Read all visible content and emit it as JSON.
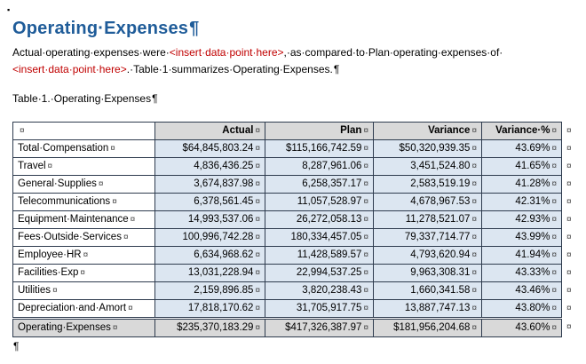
{
  "colors": {
    "heading_blue": "#1F5C99",
    "insert_red": "#C00000",
    "header_bg": "#D9D9D9",
    "cell_bg": "#DCE6F1",
    "total_bg": "#D9D9D9",
    "border_dark": "#2E3B4E",
    "mark_gray": "#3F3F3F"
  },
  "marks": {
    "pilcrow": "¶",
    "cell_end": "¤",
    "row_end": "¤",
    "top_square": "▪"
  },
  "heading": {
    "text": "Operating·Expenses"
  },
  "paragraph": {
    "seg1": "Actual·operating·expenses·were·",
    "seg2": "<insert·data·point·here>",
    "seg3": ",·as·compared·to·Plan·operating·expenses·of·",
    "seg4": "<insert·data·point·here>",
    "seg5": ".·Table·1·summarizes·Operating·Expenses."
  },
  "caption": {
    "text": "Table·1.·Operating·Expenses"
  },
  "table": {
    "headers": [
      "",
      "Actual",
      "Plan",
      "Variance",
      "Variance·%"
    ],
    "rows": [
      {
        "label": "Total·Compensation",
        "actual": "$64,845,803.24",
        "plan": "$115,166,742.59",
        "variance": "$50,320,939.35",
        "variance_pct": "43.69%"
      },
      {
        "label": "Travel",
        "actual": "4,836,436.25",
        "plan": "8,287,961.06",
        "variance": "3,451,524.80",
        "variance_pct": "41.65%"
      },
      {
        "label": "General·Supplies",
        "actual": "3,674,837.98",
        "plan": "6,258,357.17",
        "variance": "2,583,519.19",
        "variance_pct": "41.28%"
      },
      {
        "label": "Telecommunications",
        "actual": "6,378,561.45",
        "plan": "11,057,528.97",
        "variance": "4,678,967.53",
        "variance_pct": "42.31%"
      },
      {
        "label": "Equipment·Maintenance",
        "actual": "14,993,537.06",
        "plan": "26,272,058.13",
        "variance": "11,278,521.07",
        "variance_pct": "42.93%"
      },
      {
        "label": "Fees·Outside·Services",
        "actual": "100,996,742.28",
        "plan": "180,334,457.05",
        "variance": "79,337,714.77",
        "variance_pct": "43.99%"
      },
      {
        "label": "Employee·HR",
        "actual": "6,634,968.62",
        "plan": "11,428,589.57",
        "variance": "4,793,620.94",
        "variance_pct": "41.94%"
      },
      {
        "label": "Facilities·Exp",
        "actual": "13,031,228.94",
        "plan": "22,994,537.25",
        "variance": "9,963,308.31",
        "variance_pct": "43.33%"
      },
      {
        "label": "Utilities",
        "actual": "2,159,896.85",
        "plan": "3,820,238.43",
        "variance": "1,660,341.58",
        "variance_pct": "43.46%"
      },
      {
        "label": "Depreciation·and·Amort",
        "actual": "17,818,170.62",
        "plan": "31,705,917.75",
        "variance": "13,887,747.13",
        "variance_pct": "43.80%"
      }
    ],
    "total_row": {
      "label": "Operating·Expenses",
      "actual": "$235,370,183.29",
      "plan": "$417,326,387.97",
      "variance": "$181,956,204.68",
      "variance_pct": "43.60%"
    }
  }
}
